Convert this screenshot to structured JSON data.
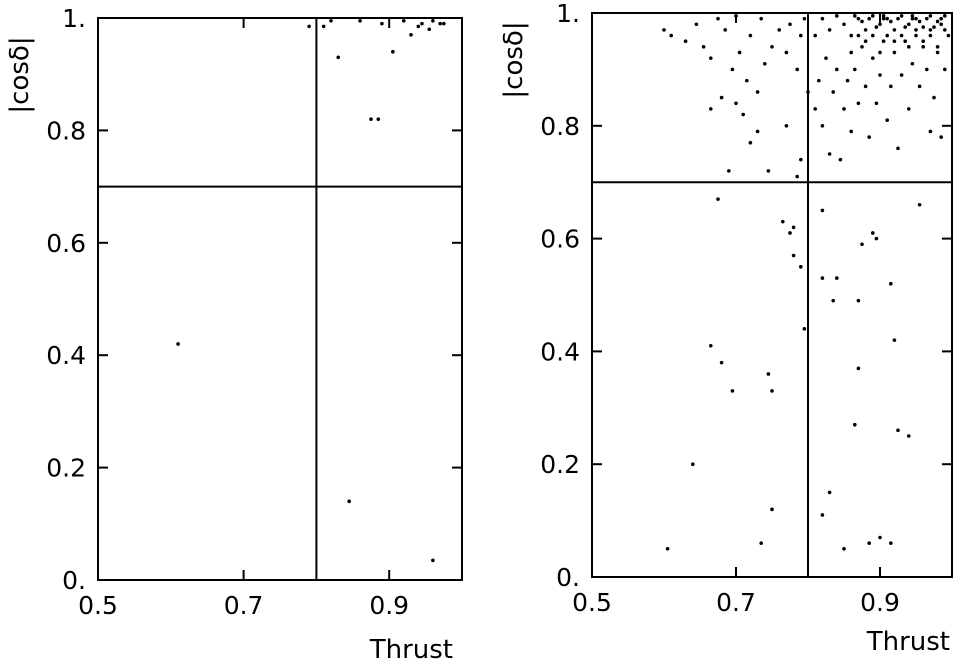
{
  "chart_data": [
    {
      "type": "scatter",
      "xlabel": "Thrust",
      "ylabel": "|cosδ|",
      "xlim": [
        0.5,
        1.0
      ],
      "ylim": [
        0.0,
        1.0
      ],
      "x_ticks": [
        "0.5",
        "0.7",
        "0.9"
      ],
      "y_ticks": [
        "0.",
        "0.2",
        "0.4",
        "0.6",
        "0.8",
        "1."
      ],
      "cut_lines": {
        "thrust": 0.8,
        "cos_delta": 0.7
      },
      "grid": false,
      "series": [
        {
          "points": [
            [
              0.61,
              0.42
            ],
            [
              0.845,
              0.14
            ],
            [
              0.96,
              0.035
            ],
            [
              0.875,
              0.82
            ],
            [
              0.885,
              0.82
            ],
            [
              0.83,
              0.93
            ],
            [
              0.905,
              0.94
            ],
            [
              0.93,
              0.97
            ],
            [
              0.955,
              0.98
            ],
            [
              0.97,
              0.99
            ],
            [
              0.975,
              0.99
            ],
            [
              0.92,
              0.995
            ],
            [
              0.86,
              0.995
            ],
            [
              0.89,
              0.99
            ],
            [
              0.94,
              0.985
            ],
            [
              0.82,
              0.995
            ],
            [
              0.81,
              0.985
            ],
            [
              0.945,
              0.99
            ],
            [
              0.96,
              0.995
            ],
            [
              0.79,
              0.985
            ]
          ]
        }
      ]
    },
    {
      "type": "scatter",
      "xlabel": "Thrust",
      "ylabel": "|cosδ|",
      "xlim": [
        0.5,
        1.0
      ],
      "ylim": [
        0.0,
        1.0
      ],
      "x_ticks": [
        "0.5",
        "0.7",
        "0.9"
      ],
      "y_ticks": [
        "0.",
        "0.2",
        "0.4",
        "0.6",
        "0.8",
        "1."
      ],
      "cut_lines": {
        "thrust": 0.8,
        "cos_delta": 0.7
      },
      "grid": false,
      "series": [
        {
          "points": [
            [
              0.605,
              0.05
            ],
            [
              0.64,
              0.2
            ],
            [
              0.665,
              0.41
            ],
            [
              0.68,
              0.38
            ],
            [
              0.695,
              0.33
            ],
            [
              0.735,
              0.06
            ],
            [
              0.745,
              0.36
            ],
            [
              0.75,
              0.12
            ],
            [
              0.75,
              0.33
            ],
            [
              0.765,
              0.63
            ],
            [
              0.775,
              0.61
            ],
            [
              0.78,
              0.62
            ],
            [
              0.78,
              0.57
            ],
            [
              0.79,
              0.55
            ],
            [
              0.795,
              0.44
            ],
            [
              0.82,
              0.65
            ],
            [
              0.82,
              0.53
            ],
            [
              0.82,
              0.11
            ],
            [
              0.83,
              0.15
            ],
            [
              0.835,
              0.49
            ],
            [
              0.84,
              0.53
            ],
            [
              0.85,
              0.05
            ],
            [
              0.865,
              0.27
            ],
            [
              0.87,
              0.37
            ],
            [
              0.87,
              0.49
            ],
            [
              0.875,
              0.59
            ],
            [
              0.885,
              0.06
            ],
            [
              0.89,
              0.61
            ],
            [
              0.895,
              0.6
            ],
            [
              0.9,
              0.07
            ],
            [
              0.915,
              0.52
            ],
            [
              0.915,
              0.06
            ],
            [
              0.92,
              0.42
            ],
            [
              0.925,
              0.26
            ],
            [
              0.94,
              0.25
            ],
            [
              0.955,
              0.66
            ],
            [
              0.97,
              0.79
            ],
            [
              0.985,
              0.78
            ],
            [
              0.675,
              0.67
            ],
            [
              0.69,
              0.72
            ],
            [
              0.72,
              0.77
            ],
            [
              0.745,
              0.72
            ],
            [
              0.77,
              0.8
            ],
            [
              0.785,
              0.71
            ],
            [
              0.79,
              0.74
            ],
            [
              0.665,
              0.83
            ],
            [
              0.68,
              0.85
            ],
            [
              0.7,
              0.84
            ],
            [
              0.71,
              0.82
            ],
            [
              0.73,
              0.79
            ],
            [
              0.695,
              0.9
            ],
            [
              0.705,
              0.93
            ],
            [
              0.715,
              0.88
            ],
            [
              0.73,
              0.86
            ],
            [
              0.74,
              0.91
            ],
            [
              0.6,
              0.97
            ],
            [
              0.61,
              0.96
            ],
            [
              0.63,
              0.95
            ],
            [
              0.645,
              0.98
            ],
            [
              0.655,
              0.94
            ],
            [
              0.665,
              0.92
            ],
            [
              0.675,
              0.99
            ],
            [
              0.685,
              0.97
            ],
            [
              0.7,
              0.995
            ],
            [
              0.72,
              0.96
            ],
            [
              0.735,
              0.99
            ],
            [
              0.75,
              0.94
            ],
            [
              0.76,
              0.97
            ],
            [
              0.77,
              0.93
            ],
            [
              0.775,
              0.98
            ],
            [
              0.785,
              0.9
            ],
            [
              0.79,
              0.96
            ],
            [
              0.795,
              0.99
            ],
            [
              0.8,
              0.86
            ],
            [
              0.81,
              0.83
            ],
            [
              0.815,
              0.88
            ],
            [
              0.82,
              0.8
            ],
            [
              0.825,
              0.92
            ],
            [
              0.83,
              0.75
            ],
            [
              0.835,
              0.86
            ],
            [
              0.84,
              0.9
            ],
            [
              0.845,
              0.74
            ],
            [
              0.85,
              0.83
            ],
            [
              0.855,
              0.88
            ],
            [
              0.86,
              0.79
            ],
            [
              0.865,
              0.9
            ],
            [
              0.87,
              0.84
            ],
            [
              0.875,
              0.94
            ],
            [
              0.88,
              0.87
            ],
            [
              0.885,
              0.78
            ],
            [
              0.89,
              0.92
            ],
            [
              0.895,
              0.84
            ],
            [
              0.9,
              0.89
            ],
            [
              0.905,
              0.95
            ],
            [
              0.91,
              0.81
            ],
            [
              0.915,
              0.87
            ],
            [
              0.92,
              0.93
            ],
            [
              0.925,
              0.76
            ],
            [
              0.93,
              0.89
            ],
            [
              0.935,
              0.95
            ],
            [
              0.94,
              0.83
            ],
            [
              0.945,
              0.91
            ],
            [
              0.95,
              0.97
            ],
            [
              0.955,
              0.87
            ],
            [
              0.96,
              0.94
            ],
            [
              0.965,
              0.9
            ],
            [
              0.97,
              0.96
            ],
            [
              0.975,
              0.85
            ],
            [
              0.98,
              0.93
            ],
            [
              0.985,
              0.98
            ],
            [
              0.99,
              0.9
            ],
            [
              0.995,
              0.96
            ],
            [
              0.81,
              0.96
            ],
            [
              0.82,
              0.99
            ],
            [
              0.83,
              0.97
            ],
            [
              0.84,
              0.995
            ],
            [
              0.85,
              0.98
            ],
            [
              0.86,
              0.96
            ],
            [
              0.87,
              0.99
            ],
            [
              0.88,
              0.97
            ],
            [
              0.89,
              0.995
            ],
            [
              0.9,
              0.98
            ],
            [
              0.91,
              0.99
            ],
            [
              0.92,
              0.97
            ],
            [
              0.93,
              0.995
            ],
            [
              0.94,
              0.98
            ],
            [
              0.95,
              0.99
            ],
            [
              0.96,
              0.975
            ],
            [
              0.97,
              0.995
            ],
            [
              0.98,
              0.985
            ],
            [
              0.99,
              0.995
            ],
            [
              0.875,
              0.985
            ],
            [
              0.885,
              0.99
            ],
            [
              0.895,
              0.975
            ],
            [
              0.905,
              0.99
            ],
            [
              0.915,
              0.985
            ],
            [
              0.925,
              0.99
            ],
            [
              0.935,
              0.975
            ],
            [
              0.945,
              0.99
            ],
            [
              0.955,
              0.985
            ],
            [
              0.965,
              0.99
            ],
            [
              0.975,
              0.975
            ],
            [
              0.865,
              0.995
            ],
            [
              0.905,
              0.995
            ],
            [
              0.945,
              0.995
            ],
            [
              0.985,
              0.99
            ],
            [
              0.86,
              0.93
            ],
            [
              0.88,
              0.95
            ],
            [
              0.9,
              0.93
            ],
            [
              0.92,
              0.95
            ],
            [
              0.94,
              0.94
            ],
            [
              0.96,
              0.95
            ],
            [
              0.98,
              0.94
            ],
            [
              0.87,
              0.96
            ],
            [
              0.89,
              0.96
            ],
            [
              0.91,
              0.96
            ],
            [
              0.93,
              0.96
            ],
            [
              0.95,
              0.96
            ],
            [
              0.97,
              0.97
            ],
            [
              0.99,
              0.97
            ]
          ]
        }
      ]
    }
  ]
}
